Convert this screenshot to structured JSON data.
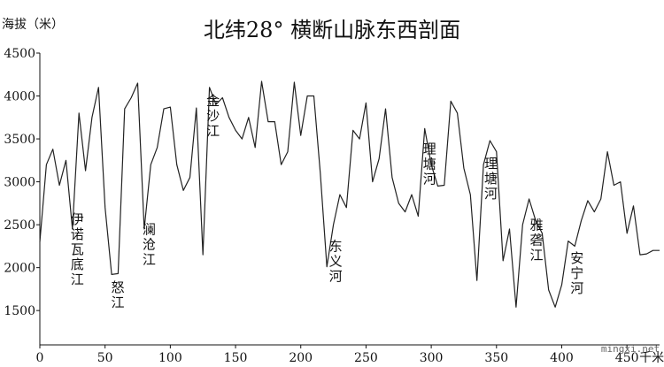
{
  "chart_data": {
    "type": "line",
    "title": "北纬28° 横断山脉东西剖面",
    "ylabel": "海拔（米）",
    "xlabel": "千米",
    "xlim": [
      0,
      475
    ],
    "ylim": [
      1100,
      4500
    ],
    "xticks": [
      0,
      50,
      100,
      150,
      200,
      250,
      300,
      350,
      400,
      450
    ],
    "yticks": [
      1500,
      2000,
      2500,
      3000,
      3500,
      4000,
      4500
    ],
    "x": [
      0,
      5,
      10,
      15,
      20,
      25,
      30,
      35,
      40,
      45,
      50,
      55,
      60,
      65,
      70,
      75,
      80,
      85,
      90,
      95,
      100,
      105,
      110,
      115,
      120,
      125,
      130,
      135,
      140,
      145,
      150,
      155,
      160,
      165,
      170,
      175,
      180,
      185,
      190,
      195,
      200,
      205,
      210,
      215,
      220,
      225,
      230,
      235,
      240,
      245,
      250,
      255,
      260,
      265,
      270,
      275,
      280,
      285,
      290,
      295,
      300,
      305,
      310,
      315,
      320,
      325,
      330,
      335,
      340,
      345,
      350,
      355,
      360,
      365,
      370,
      375,
      380,
      385,
      390,
      395,
      400,
      405,
      410,
      415,
      420,
      425,
      430,
      435,
      440,
      445,
      450,
      455,
      460,
      465,
      470,
      475
    ],
    "y": [
      2300,
      3200,
      3380,
      2960,
      3250,
      2450,
      3800,
      3130,
      3750,
      4100,
      2700,
      1920,
      1930,
      3850,
      3980,
      4150,
      2450,
      3200,
      3400,
      3850,
      3870,
      3200,
      2900,
      3050,
      3860,
      2150,
      4100,
      3900,
      3980,
      3750,
      3600,
      3500,
      3750,
      3400,
      4170,
      3700,
      3700,
      3200,
      3350,
      4160,
      3540,
      4000,
      4000,
      3100,
      2010,
      2500,
      2850,
      2700,
      3600,
      3500,
      3920,
      3000,
      3270,
      3850,
      3050,
      2750,
      2650,
      2850,
      2600,
      3620,
      3200,
      2950,
      2960,
      3940,
      3800,
      3160,
      2850,
      1850,
      3200,
      3480,
      3350,
      2080,
      2450,
      1540,
      2500,
      2800,
      2550,
      2400,
      1740,
      1540,
      1800,
      2310,
      2250,
      2550,
      2780,
      2650,
      2800,
      3350,
      2960,
      3000,
      2400,
      2720,
      2150,
      2160,
      2200,
      2200
    ],
    "annotations": [
      {
        "text": "伊诺瓦底江",
        "x": 26
      },
      {
        "text": "怒江",
        "x": 57
      },
      {
        "text": "澜沧江",
        "x": 81
      },
      {
        "text": "金沙江",
        "x": 130
      },
      {
        "text": "东义河",
        "x": 224
      },
      {
        "text": "理塘河",
        "x": 296
      },
      {
        "text": "理塘河",
        "x": 343
      },
      {
        "text": "雅砻江",
        "x": 378
      },
      {
        "text": "安宁河",
        "x": 409
      }
    ],
    "grid": false
  },
  "watermark": "mingxi.net",
  "colors": {
    "line": "#222222",
    "axis": "#111111",
    "text": "#111111"
  }
}
